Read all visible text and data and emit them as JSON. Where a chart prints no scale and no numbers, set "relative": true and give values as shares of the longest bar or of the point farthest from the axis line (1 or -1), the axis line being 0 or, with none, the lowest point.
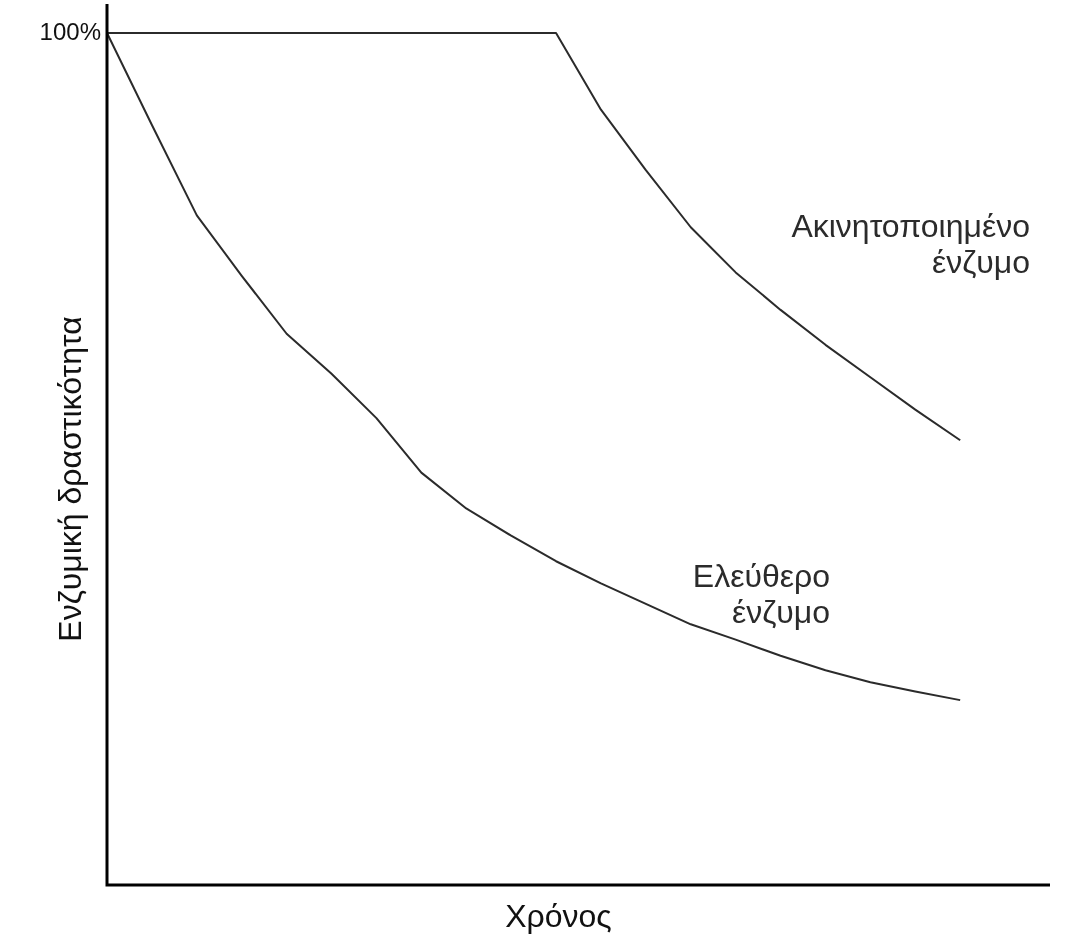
{
  "chart_data": {
    "type": "line",
    "relative": true,
    "xlabel": "Χρόνος",
    "ylabel": "Ενζυμική δραστικότητα",
    "categories": [
      null,
      null,
      null,
      null,
      null,
      null,
      null,
      null,
      null,
      null,
      null,
      null,
      null,
      null,
      null,
      null,
      null,
      null,
      null,
      null,
      null,
      null
    ],
    "series": [
      {
        "name": "Ακινητοποιημένο ένζυμο",
        "color": "#2b2b2b",
        "values": [
          1,
          1,
          1,
          1,
          1,
          1,
          1,
          1,
          1,
          1,
          1,
          0.91,
          0.839,
          0.772,
          0.719,
          0.675,
          0.634,
          0.596,
          0.558,
          0.522,
          null,
          null
        ]
      },
      {
        "name": "Ελεύθερο ένζυμο",
        "color": "#2b2b2b",
        "values": [
          1,
          0.892,
          0.786,
          0.715,
          0.647,
          0.6,
          0.548,
          0.484,
          0.442,
          0.41,
          0.38,
          0.354,
          0.33,
          0.306,
          0.288,
          0.269,
          0.252,
          0.238,
          0.227,
          0.217,
          null,
          null
        ]
      }
    ],
    "annotations": [
      "100%"
    ],
    "legend": false,
    "marker": "none",
    "line_style": "solid"
  }
}
